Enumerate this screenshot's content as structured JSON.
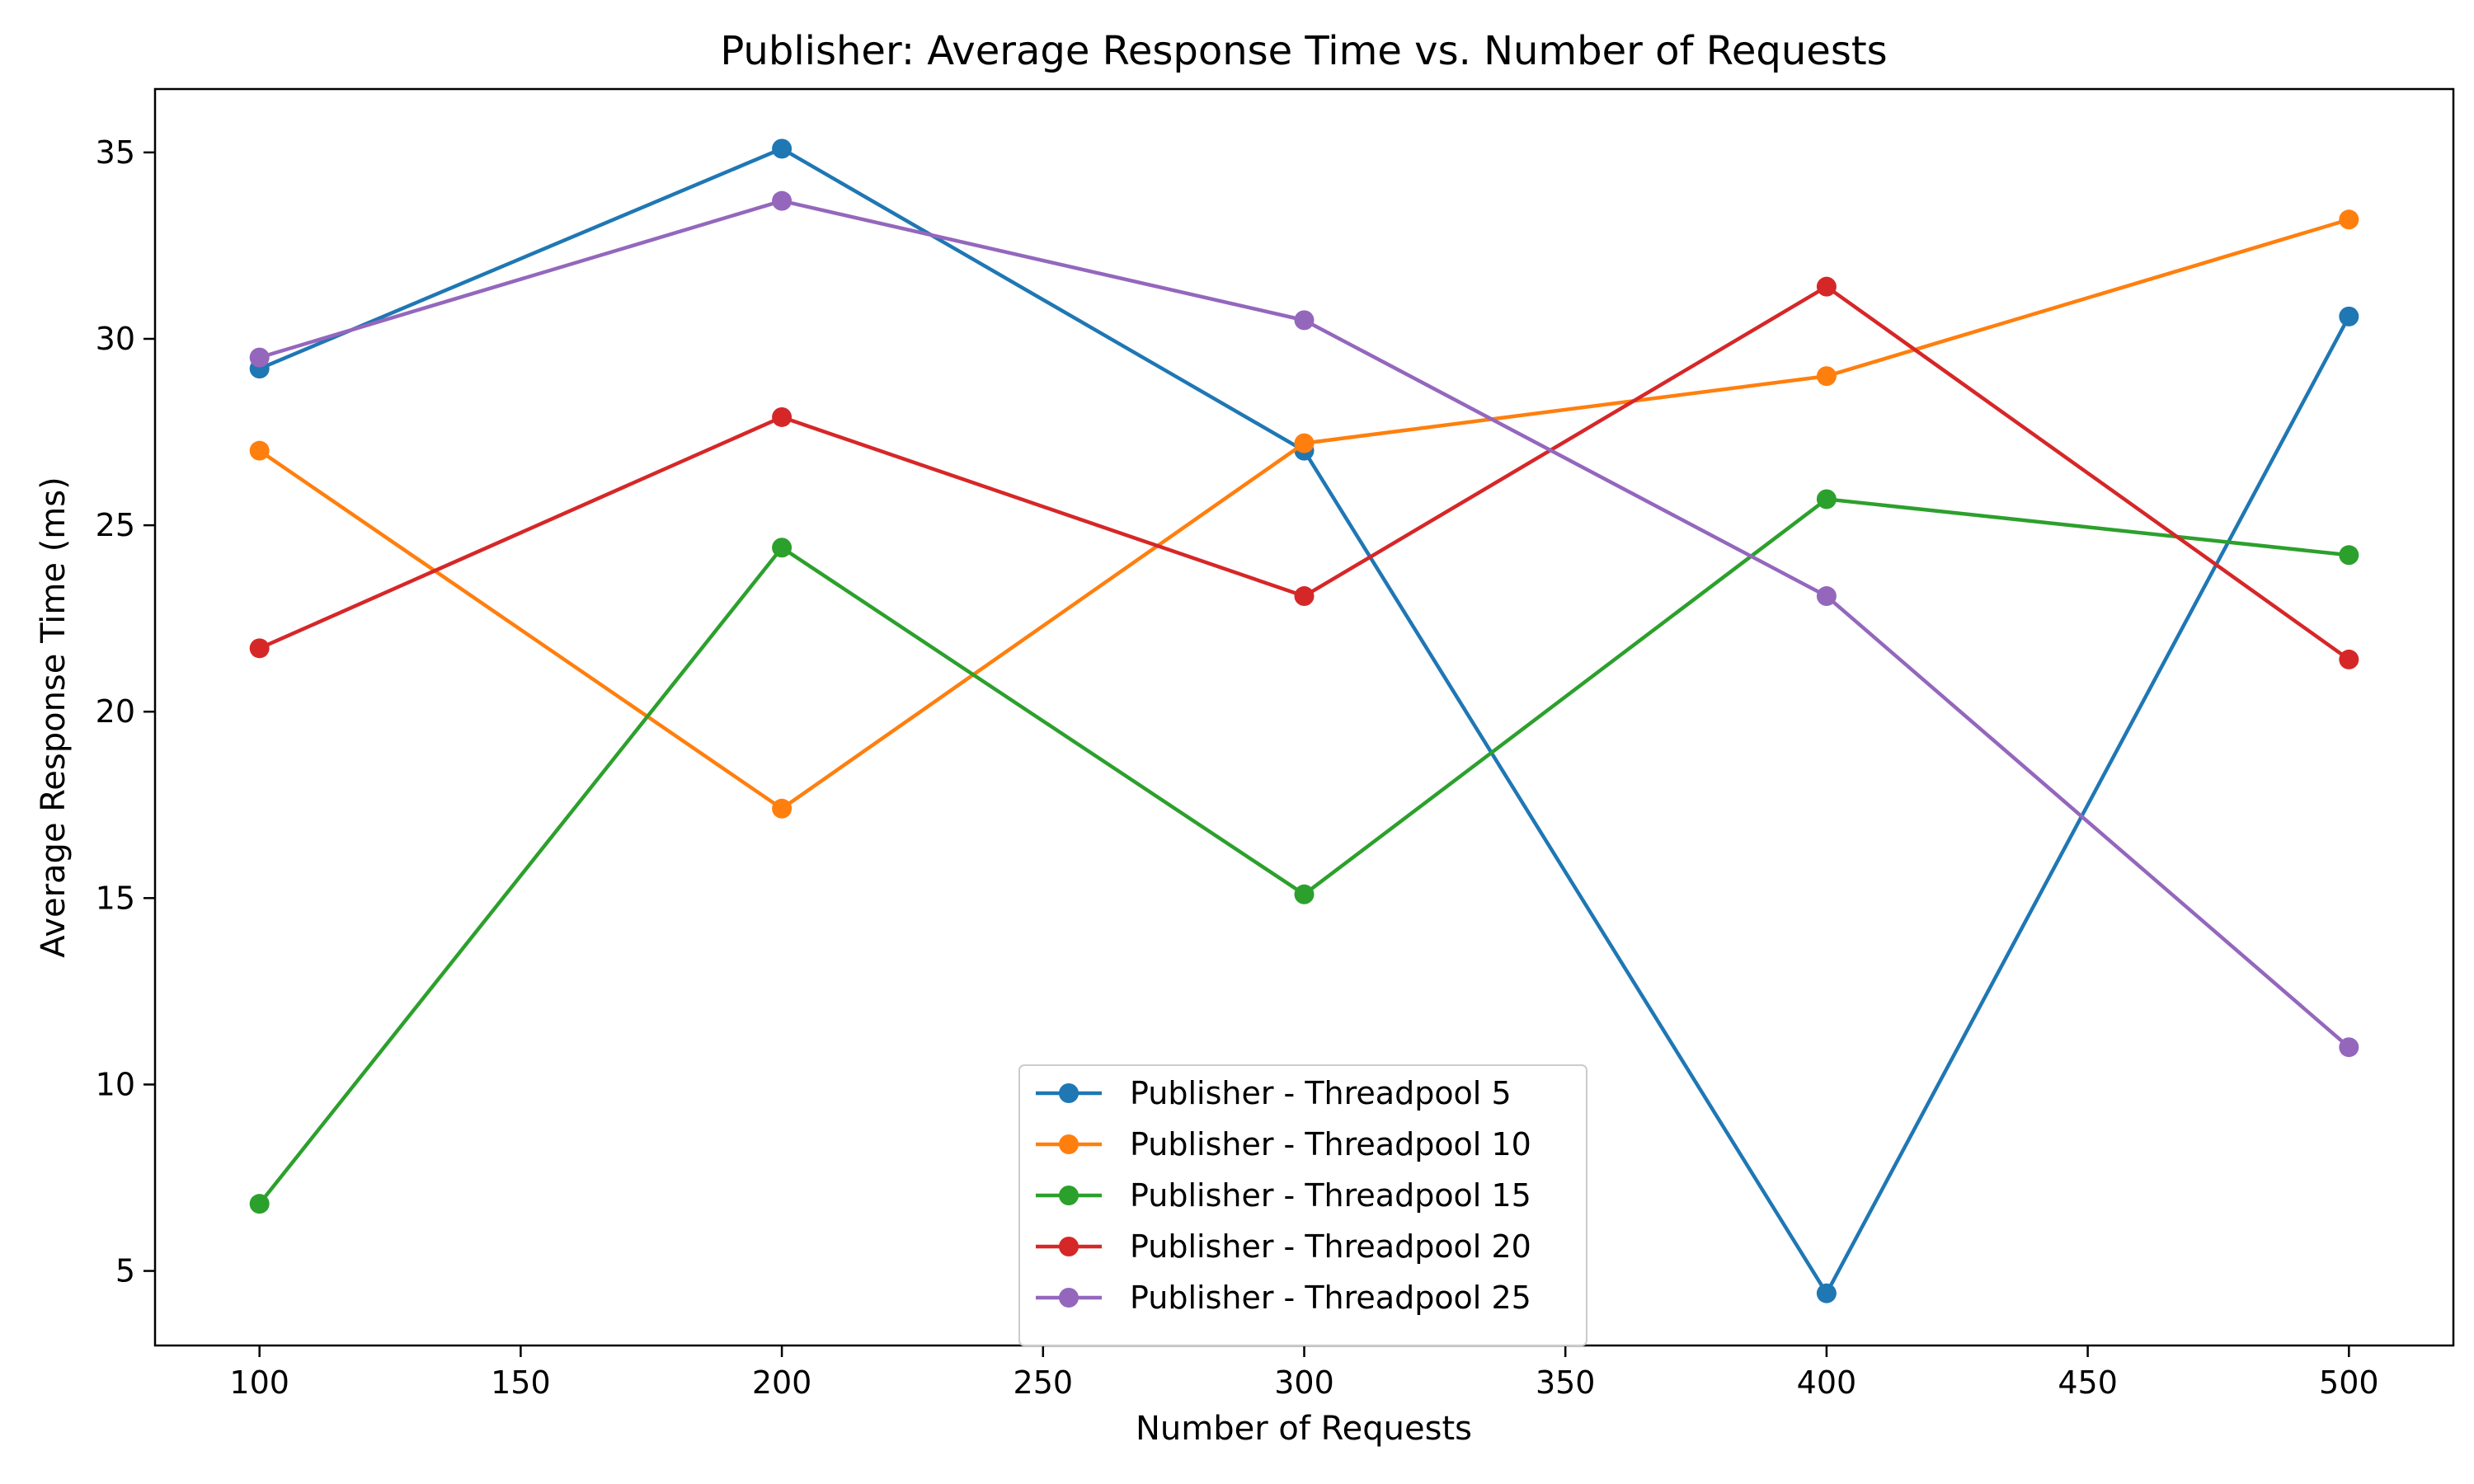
{
  "chart_data": {
    "type": "line",
    "title": "Publisher: Average Response Time vs. Number of Requests",
    "xlabel": "Number of Requests",
    "ylabel": "Average Response Time (ms)",
    "x": [
      100,
      200,
      300,
      400,
      500
    ],
    "xlim": [
      80,
      520
    ],
    "ylim": [
      3,
      36.7
    ],
    "xticks": [
      100,
      150,
      200,
      250,
      300,
      350,
      400,
      450,
      500
    ],
    "yticks": [
      5,
      10,
      15,
      20,
      25,
      30,
      35
    ],
    "grid": false,
    "legend_position": "bottom-center",
    "marker": "circle",
    "series": [
      {
        "name": "Publisher - Threadpool 5",
        "color": "#1f77b4",
        "values": [
          29.2,
          35.1,
          27.0,
          4.4,
          30.6
        ]
      },
      {
        "name": "Publisher - Threadpool 10",
        "color": "#ff7f0e",
        "values": [
          27.0,
          17.4,
          27.2,
          29.0,
          33.2
        ]
      },
      {
        "name": "Publisher - Threadpool 15",
        "color": "#2ca02c",
        "values": [
          6.8,
          24.4,
          15.1,
          25.7,
          24.2
        ]
      },
      {
        "name": "Publisher - Threadpool 20",
        "color": "#d62728",
        "values": [
          21.7,
          27.9,
          23.1,
          31.4,
          21.4
        ]
      },
      {
        "name": "Publisher - Threadpool 25",
        "color": "#9467bd",
        "values": [
          29.5,
          33.7,
          30.5,
          23.1,
          11.0
        ]
      }
    ]
  }
}
